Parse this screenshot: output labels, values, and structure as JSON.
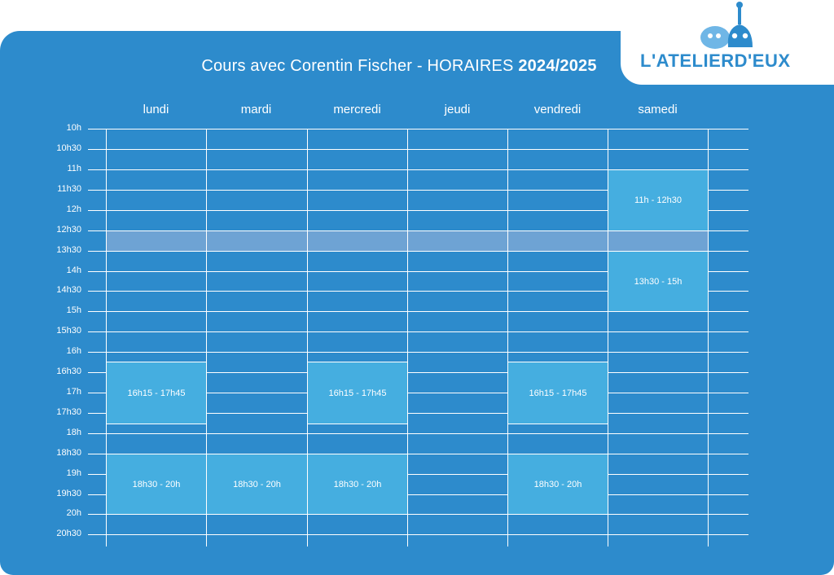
{
  "header": {
    "title_prefix": "Cours avec Corentin Fischer - HORAIRES ",
    "title_year": "2024/2025",
    "logo_text": "L'ATELIERD'EUX"
  },
  "days": [
    "lundi",
    "mardi",
    "mercredi",
    "jeudi",
    "vendredi",
    "samedi"
  ],
  "times": [
    "10h",
    "10h30",
    "11h",
    "11h30",
    "12h",
    "12h30",
    "13h30",
    "14h",
    "14h30",
    "15h",
    "15h30",
    "16h",
    "16h30",
    "17h",
    "17h30",
    "18h",
    "18h30",
    "19h",
    "19h30",
    "20h",
    "20h30"
  ],
  "slots": [
    {
      "day": 5,
      "label": "11h - 12h30"
    },
    {
      "day": 5,
      "label": "13h30 - 15h"
    },
    {
      "day": 0,
      "label": "16h15 - 17h45"
    },
    {
      "day": 2,
      "label": "16h15 - 17h45"
    },
    {
      "day": 4,
      "label": "16h15 - 17h45"
    },
    {
      "day": 0,
      "label": "18h30 - 20h"
    },
    {
      "day": 1,
      "label": "18h30 - 20h"
    },
    {
      "day": 2,
      "label": "18h30 - 20h"
    },
    {
      "day": 4,
      "label": "18h30 - 20h"
    }
  ],
  "colors": {
    "background": "#2d8bcc",
    "slot": "#45aee0",
    "lunch_band": "#6ea3d4",
    "lines": "#ffffff"
  }
}
